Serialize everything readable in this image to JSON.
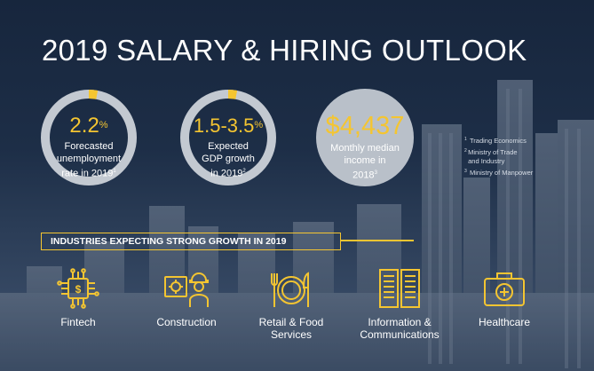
{
  "title": "2019 SALARY & HIRING OUTLOOK",
  "stats": [
    {
      "value": "2.2",
      "unit": "%",
      "line1": "Forecasted",
      "line2": "unemployment",
      "line3": "rate in 2019",
      "note": "1",
      "ring_fill": 0.03
    },
    {
      "value": "1.5-3.5",
      "unit": "%",
      "line1": "Expected",
      "line2": "GDP growth",
      "line3": "in 2019",
      "note": "2",
      "ring_fill": 0.03
    },
    {
      "value": "$4,437",
      "line1": "Monthly median",
      "line2": "income in",
      "line3": "2018",
      "note": "3"
    }
  ],
  "footnotes": [
    {
      "n": "1",
      "text": "Trading Economics"
    },
    {
      "n": "2",
      "text": "Ministry of Trade and Industry"
    },
    {
      "n": "3",
      "text": "Ministry of Manpower"
    }
  ],
  "banner": "INDUSTRIES EXPECTING STRONG GROWTH IN 2019",
  "industries": [
    {
      "label1": "Fintech",
      "label2": "",
      "icon": "fintech-circuit-icon"
    },
    {
      "label1": "Construction",
      "label2": "",
      "icon": "construction-worker-icon"
    },
    {
      "label1": "Retail & Food",
      "label2": "Services",
      "icon": "plate-cutlery-icon"
    },
    {
      "label1": "Information &",
      "label2": "Communications",
      "icon": "server-rack-icon"
    },
    {
      "label1": "Healthcare",
      "label2": "",
      "icon": "medical-kit-icon"
    }
  ],
  "colors": {
    "accent": "#f4c531",
    "ring": "#c3c9d1",
    "filled_circle": "#b9c0c9",
    "background": "#1d2e47"
  }
}
